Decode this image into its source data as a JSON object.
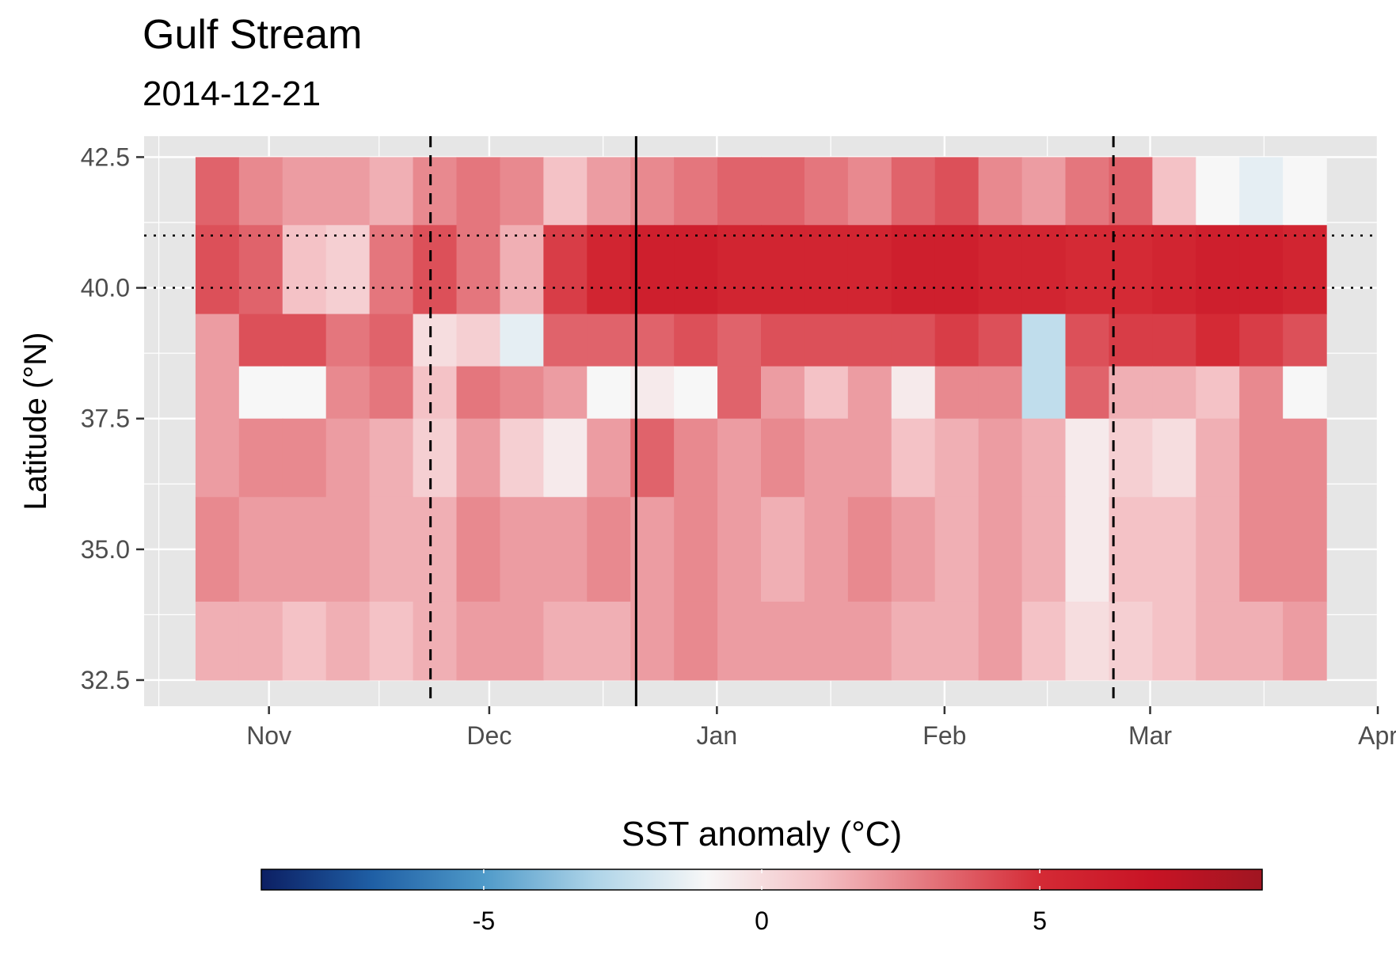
{
  "title": "Gulf Stream",
  "subtitle": "2014-12-21",
  "chart_data": {
    "type": "heatmap",
    "title": "Gulf Stream",
    "subtitle": "2014-12-21",
    "xlabel": "",
    "ylabel": "Latitude (°N)",
    "x_range": [
      "2014-10-15",
      "2015-04-01"
    ],
    "y_range": [
      32.0,
      42.9
    ],
    "x_ticks": [
      {
        "date": "2014-11-01",
        "label": "Nov"
      },
      {
        "date": "2014-12-01",
        "label": "Dec"
      },
      {
        "date": "2015-01-01",
        "label": "Jan"
      },
      {
        "date": "2015-02-01",
        "label": "Feb"
      },
      {
        "date": "2015-03-01",
        "label": "Mar"
      },
      {
        "date": "2015-04-01",
        "label": "Apr"
      }
    ],
    "y_ticks": [
      {
        "value": 32.5,
        "label": "32.5"
      },
      {
        "value": 35.0,
        "label": "35.0"
      },
      {
        "value": 37.5,
        "label": "37.5"
      },
      {
        "value": 40.0,
        "label": "40.0"
      },
      {
        "value": 42.5,
        "label": "42.5"
      }
    ],
    "data_extent": {
      "x": [
        "2014-10-22",
        "2015-03-25"
      ],
      "y": [
        32.5,
        42.5
      ]
    },
    "vlines": [
      {
        "date": "2014-11-23",
        "style": "dashed"
      },
      {
        "date": "2014-12-21",
        "style": "solid"
      },
      {
        "date": "2015-02-24",
        "style": "dashed"
      }
    ],
    "hlines": [
      {
        "value": 41.0,
        "style": "dotted"
      },
      {
        "value": 40.0,
        "style": "dotted"
      }
    ],
    "bands": [
      {
        "lat": [
          42.5,
          41.2
        ],
        "values": [
          3.5,
          2.5,
          2.0,
          2.0,
          1.5,
          2.5,
          3.0,
          2.5,
          1.0,
          2.0,
          2.5,
          3.0,
          3.5,
          3.5,
          3.0,
          2.5,
          3.5,
          4.0,
          2.5,
          2.0,
          3.0,
          3.5,
          1.0,
          -1.0,
          -1.5,
          -1.0
        ]
      },
      {
        "lat": [
          41.2,
          39.5
        ],
        "values": [
          4.0,
          3.5,
          1.0,
          0.5,
          3.0,
          4.0,
          3.0,
          1.5,
          4.5,
          5.5,
          6.0,
          6.0,
          5.5,
          5.5,
          5.5,
          5.5,
          6.0,
          6.0,
          5.5,
          5.5,
          5.0,
          5.0,
          5.5,
          6.0,
          6.0,
          5.5
        ]
      },
      {
        "lat": [
          39.5,
          38.5
        ],
        "values": [
          2.0,
          4.0,
          4.0,
          3.0,
          3.5,
          0.0,
          0.5,
          -1.5,
          3.5,
          3.5,
          3.5,
          4.0,
          3.5,
          4.0,
          4.0,
          4.0,
          4.0,
          4.5,
          4.0,
          -2.5,
          4.0,
          4.5,
          4.5,
          5.0,
          4.5,
          4.0
        ]
      },
      {
        "lat": [
          38.5,
          37.5
        ],
        "values": [
          2.0,
          -1.0,
          -1.0,
          2.5,
          3.0,
          1.0,
          3.0,
          2.5,
          2.0,
          -1.0,
          -0.5,
          -1.0,
          3.5,
          2.0,
          1.0,
          2.0,
          -0.5,
          2.5,
          2.5,
          -2.5,
          3.5,
          1.5,
          1.5,
          1.0,
          2.5,
          -1.0
        ]
      },
      {
        "lat": [
          37.5,
          36.0
        ],
        "values": [
          2.0,
          2.5,
          2.5,
          2.0,
          1.5,
          0.5,
          2.0,
          0.5,
          -0.5,
          2.0,
          3.5,
          2.5,
          2.0,
          2.5,
          2.0,
          2.0,
          1.0,
          1.5,
          2.0,
          1.5,
          -0.5,
          0.5,
          0.0,
          1.5,
          2.5,
          2.5
        ]
      },
      {
        "lat": [
          36.0,
          34.0
        ],
        "values": [
          2.5,
          2.0,
          2.0,
          2.0,
          1.5,
          1.5,
          2.5,
          2.0,
          2.0,
          2.5,
          2.0,
          2.5,
          2.0,
          1.5,
          2.0,
          2.5,
          2.0,
          1.5,
          2.0,
          1.5,
          -0.5,
          1.0,
          1.0,
          1.5,
          2.5,
          2.5
        ]
      },
      {
        "lat": [
          34.0,
          32.5
        ],
        "values": [
          1.5,
          1.5,
          1.0,
          1.5,
          1.0,
          1.5,
          2.0,
          2.0,
          1.5,
          1.5,
          2.0,
          2.5,
          2.0,
          2.0,
          2.0,
          2.0,
          1.5,
          1.5,
          2.0,
          1.0,
          0.0,
          0.5,
          1.0,
          1.5,
          1.5,
          2.0
        ]
      }
    ],
    "legend": {
      "title": "SST anomaly (°C)",
      "position": "bottom",
      "range": [
        -9,
        9
      ],
      "ticks": [
        {
          "value": -5,
          "label": "-5"
        },
        {
          "value": 0,
          "label": "0"
        },
        {
          "value": 5,
          "label": "5"
        }
      ],
      "palette": [
        "#0c1f63",
        "#1f5fa5",
        "#4f9ac9",
        "#aed4e8",
        "#f7f7f7",
        "#f4c2c6",
        "#e4767d",
        "#d42a35",
        "#c81425",
        "#a01521"
      ]
    },
    "colors": {
      "panel_bg": "#e6e6e6",
      "grid": "#ffffff"
    },
    "grid": true
  }
}
